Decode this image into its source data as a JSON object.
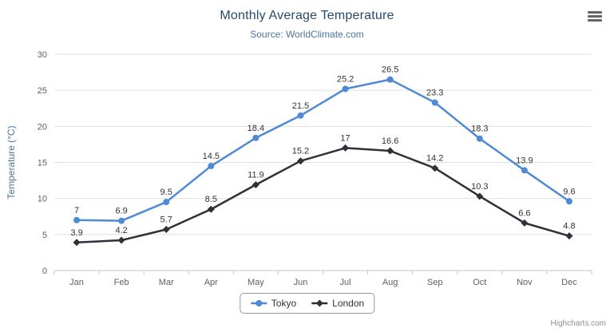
{
  "header": {
    "title": "Monthly Average Temperature",
    "subtitle": "Source: WorldClimate.com"
  },
  "toolbar": {
    "menu_icon": "hamburger-icon"
  },
  "credits": {
    "label": "Highcharts.com"
  },
  "colors": {
    "title": "#274b6d",
    "subtitle": "#4d759e",
    "axis_label": "#606060",
    "axis_title": "#4d759e",
    "grid": "#e0e0e0",
    "axis_line": "#c0c8d0",
    "data_label": "#333333",
    "legend_border": "#999999"
  },
  "chart_data": {
    "type": "line",
    "title": "Monthly Average Temperature",
    "subtitle": "Source: WorldClimate.com",
    "categories": [
      "Jan",
      "Feb",
      "Mar",
      "Apr",
      "May",
      "Jun",
      "Jul",
      "Aug",
      "Sep",
      "Oct",
      "Nov",
      "Dec"
    ],
    "series": [
      {
        "name": "Tokyo",
        "color": "#4f8ad5",
        "marker": "circle",
        "values": [
          7,
          6.9,
          9.5,
          14.5,
          18.4,
          21.5,
          25.2,
          26.5,
          23.3,
          18.3,
          13.9,
          9.6
        ]
      },
      {
        "name": "London",
        "color": "#303038",
        "marker": "diamond",
        "values": [
          3.9,
          4.2,
          5.7,
          8.5,
          11.9,
          15.2,
          17,
          16.6,
          14.2,
          10.3,
          6.6,
          4.8
        ]
      }
    ],
    "xlabel": "",
    "ylabel": "Temperature (°C)",
    "ylim": [
      0,
      30
    ],
    "ytick_interval": 5,
    "grid": true,
    "legend_position": "bottom"
  }
}
